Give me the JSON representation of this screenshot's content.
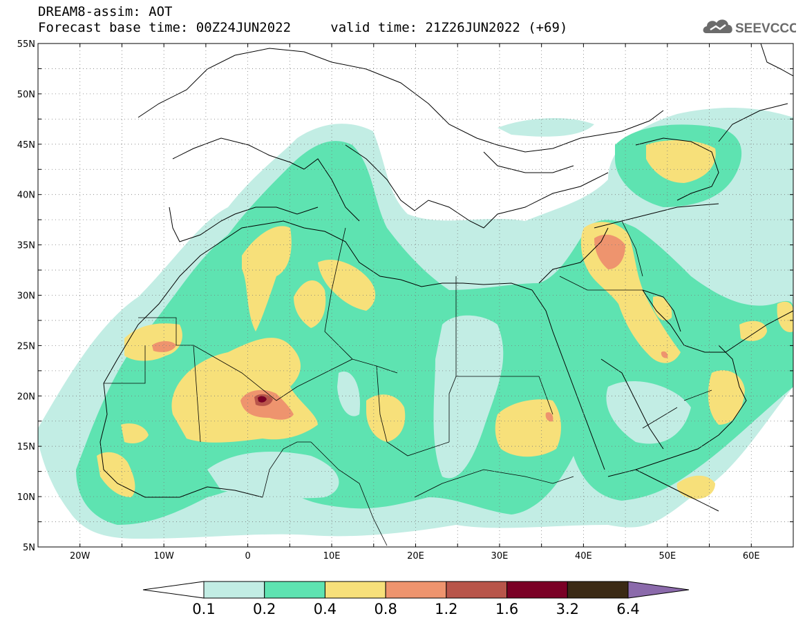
{
  "header": {
    "title": "DREAM8-assim: AOT",
    "base_time_label": "Forecast base time: 00Z24JUN2022",
    "valid_time_label": "valid time: 21Z26JUN2022 (+69)",
    "logo_text": "SEEVCCC"
  },
  "map": {
    "lon_range": [
      -25,
      65
    ],
    "lat_range": [
      5,
      55
    ],
    "lon_ticks": [
      {
        "value": -20,
        "label": "20W"
      },
      {
        "value": -10,
        "label": "10W"
      },
      {
        "value": 0,
        "label": "0"
      },
      {
        "value": 10,
        "label": "10E"
      },
      {
        "value": 20,
        "label": "20E"
      },
      {
        "value": 30,
        "label": "30E"
      },
      {
        "value": 40,
        "label": "40E"
      },
      {
        "value": 50,
        "label": "50E"
      },
      {
        "value": 60,
        "label": "60E"
      }
    ],
    "lat_ticks": [
      {
        "value": 5,
        "label": "5N"
      },
      {
        "value": 10,
        "label": "10N"
      },
      {
        "value": 15,
        "label": "15N"
      },
      {
        "value": 20,
        "label": "20N"
      },
      {
        "value": 25,
        "label": "25N"
      },
      {
        "value": 30,
        "label": "30N"
      },
      {
        "value": 35,
        "label": "35N"
      },
      {
        "value": 40,
        "label": "40N"
      },
      {
        "value": 45,
        "label": "45N"
      },
      {
        "value": 50,
        "label": "50N"
      },
      {
        "value": 55,
        "label": "55N"
      }
    ],
    "grid": "dotted"
  },
  "colorbar": {
    "colors": [
      "#ffffff",
      "#c2ede4",
      "#5ee3b1",
      "#f7e07a",
      "#ee946e",
      "#b8554a",
      "#7a0025",
      "#3b2a15",
      "#8b6aab"
    ],
    "labels": [
      "0.1",
      "0.2",
      "0.4",
      "0.8",
      "1.2",
      "1.6",
      "3.2",
      "6.4"
    ]
  },
  "colors": {
    "light_cyan": "#c2ede4",
    "green": "#5ee3b1",
    "yellow": "#f7e07a",
    "orange": "#ee946e",
    "brown": "#b8554a",
    "dark_red": "#7a0025"
  }
}
